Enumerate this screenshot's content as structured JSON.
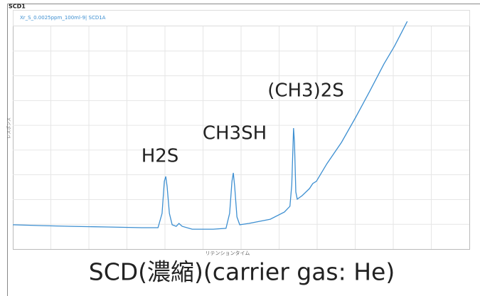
{
  "chart_data": {
    "type": "line",
    "header": "SCD1",
    "legend_text": "Xr_S_0.0025ppm_100ml-9| SCD1A",
    "y_label": "レスポンス",
    "x_label": "リテンションタイム",
    "title": "SCD(濃縮)(carrier gas: He)",
    "annotations": [
      "H2S",
      "CH3SH",
      "(CH3)2S"
    ],
    "xlim": [
      0,
      100
    ],
    "ylim": [
      0,
      100
    ],
    "grid": true,
    "series": [
      {
        "name": "Xr_S_0.0025ppm_100ml-9| SCD1A",
        "color": "#3d8fd1",
        "x": [
          0,
          6.5,
          12.8,
          20.6,
          28.3,
          31.8,
          32.7,
          33.2,
          33.5,
          33.8,
          34.3,
          34.9,
          35.8,
          36.4,
          37.1,
          39.3,
          43.9,
          46.7,
          47.5,
          48.0,
          48.3,
          48.6,
          49.1,
          49.7,
          51.7,
          56.4,
          59.5,
          60.7,
          61.1,
          61.4,
          61.5,
          61.7,
          62.0,
          62.3,
          63.4,
          65.0,
          65.7,
          66.5,
          68.8,
          72.0,
          75.1,
          78.2,
          81.3,
          83.6,
          85.2,
          86.4
        ],
        "values": [
          10.9,
          10.5,
          10.2,
          9.9,
          9.6,
          9.6,
          16.0,
          30.4,
          32.6,
          28.1,
          16.0,
          10.9,
          10.2,
          11.5,
          10.2,
          8.9,
          8.9,
          9.3,
          16.0,
          30.4,
          34.2,
          28.1,
          14.4,
          10.9,
          11.5,
          13.4,
          16.6,
          19.2,
          28.8,
          47.9,
          54.3,
          47.9,
          25.6,
          22.4,
          24.0,
          27.2,
          29.4,
          30.4,
          38.3,
          47.9,
          59.1,
          70.9,
          83.1,
          91.1,
          97.4,
          102.2
        ]
      }
    ]
  }
}
